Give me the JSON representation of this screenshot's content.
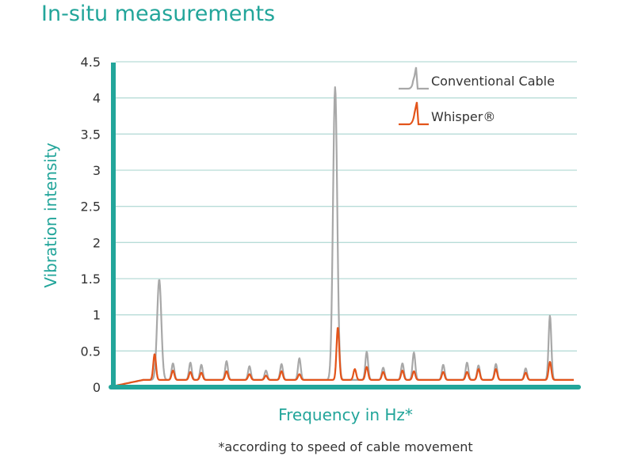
{
  "chart_data": {
    "type": "line",
    "title": "In-situ measurements",
    "xlabel": "Frequency in Hz*",
    "ylabel": "Vibration intensity",
    "footnote": "*according to speed of cable movement",
    "ylim": [
      0,
      4.5
    ],
    "yticks": [
      "0",
      "0.5",
      "1",
      "1.5",
      "2",
      "2.5",
      "3",
      "3.5",
      "4",
      "4.5"
    ],
    "grid": true,
    "legend_position": "top-right",
    "colors": {
      "accent": "#22a59a",
      "grid": "#b7dcd8",
      "conventional": "#a8a8a8",
      "whisper": "#e3541a"
    },
    "series": [
      {
        "name": "Conventional Cable",
        "baseline": 0.1,
        "peaks": [
          {
            "x": 0.095,
            "y": 1.49
          },
          {
            "x": 0.125,
            "y": 0.33
          },
          {
            "x": 0.163,
            "y": 0.34
          },
          {
            "x": 0.187,
            "y": 0.31
          },
          {
            "x": 0.242,
            "y": 0.36
          },
          {
            "x": 0.292,
            "y": 0.29
          },
          {
            "x": 0.328,
            "y": 0.23
          },
          {
            "x": 0.362,
            "y": 0.32
          },
          {
            "x": 0.401,
            "y": 0.4
          },
          {
            "x": 0.479,
            "y": 4.15
          },
          {
            "x": 0.548,
            "y": 0.49
          },
          {
            "x": 0.584,
            "y": 0.27
          },
          {
            "x": 0.626,
            "y": 0.33
          },
          {
            "x": 0.651,
            "y": 0.48
          },
          {
            "x": 0.715,
            "y": 0.31
          },
          {
            "x": 0.767,
            "y": 0.34
          },
          {
            "x": 0.792,
            "y": 0.3
          },
          {
            "x": 0.83,
            "y": 0.32
          },
          {
            "x": 0.895,
            "y": 0.26
          },
          {
            "x": 0.948,
            "y": 0.99
          }
        ]
      },
      {
        "name": "Whisper®",
        "baseline": 0.1,
        "peaks": [
          {
            "x": 0.085,
            "y": 0.46
          },
          {
            "x": 0.125,
            "y": 0.23
          },
          {
            "x": 0.163,
            "y": 0.21
          },
          {
            "x": 0.187,
            "y": 0.2
          },
          {
            "x": 0.242,
            "y": 0.22
          },
          {
            "x": 0.292,
            "y": 0.18
          },
          {
            "x": 0.328,
            "y": 0.16
          },
          {
            "x": 0.362,
            "y": 0.22
          },
          {
            "x": 0.401,
            "y": 0.18
          },
          {
            "x": 0.485,
            "y": 0.83
          },
          {
            "x": 0.522,
            "y": 0.25
          },
          {
            "x": 0.548,
            "y": 0.28
          },
          {
            "x": 0.584,
            "y": 0.21
          },
          {
            "x": 0.626,
            "y": 0.23
          },
          {
            "x": 0.651,
            "y": 0.22
          },
          {
            "x": 0.715,
            "y": 0.21
          },
          {
            "x": 0.767,
            "y": 0.21
          },
          {
            "x": 0.792,
            "y": 0.25
          },
          {
            "x": 0.83,
            "y": 0.25
          },
          {
            "x": 0.895,
            "y": 0.2
          },
          {
            "x": 0.948,
            "y": 0.35
          }
        ]
      }
    ]
  }
}
